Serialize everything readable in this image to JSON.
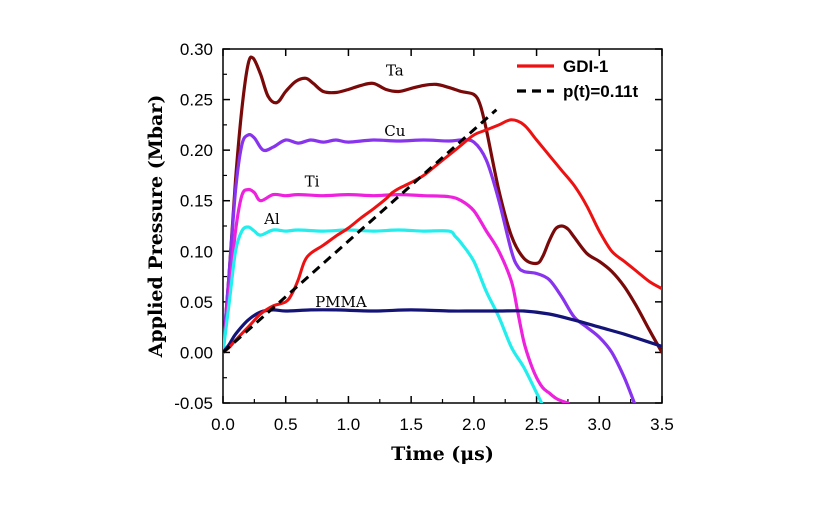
{
  "chart_data": {
    "type": "line",
    "title": "",
    "xlabel": "Time (μs)",
    "ylabel": "Applied Pressure (Mbar)",
    "xlim": [
      0.0,
      3.5
    ],
    "ylim": [
      -0.05,
      0.3
    ],
    "xticks": [
      "0.0",
      "0.5",
      "1.0",
      "1.5",
      "2.0",
      "2.5",
      "3.0",
      "3.5"
    ],
    "yticks": [
      "-0.05",
      "0.00",
      "0.05",
      "0.10",
      "0.15",
      "0.20",
      "0.25",
      "0.30"
    ],
    "xtick_values": [
      0.0,
      0.5,
      1.0,
      1.5,
      2.0,
      2.5,
      3.0,
      3.5
    ],
    "ytick_values": [
      -0.05,
      0.0,
      0.05,
      0.1,
      0.15,
      0.2,
      0.25,
      0.3
    ],
    "grid": false,
    "legend": {
      "placement": "top-right",
      "entries": [
        {
          "label": "GDI-1",
          "series": "GDI-1"
        },
        {
          "label": "p(t)=0.11t",
          "series": "p(t)=0.11t"
        }
      ]
    },
    "series": [
      {
        "name": "Ta",
        "color": "#7a0a0a",
        "dashed": false,
        "label_at": [
          1.37,
          0.274
        ],
        "x": [
          0.0,
          0.05,
          0.1,
          0.15,
          0.2,
          0.24,
          0.3,
          0.36,
          0.43,
          0.5,
          0.58,
          0.66,
          0.72,
          0.8,
          0.9,
          1.0,
          1.1,
          1.2,
          1.3,
          1.4,
          1.5,
          1.6,
          1.7,
          1.8,
          1.9,
          2.0,
          2.05,
          2.1,
          2.2,
          2.3,
          2.4,
          2.5,
          2.55,
          2.6,
          2.65,
          2.7,
          2.75,
          2.8,
          2.9,
          3.0,
          3.1,
          3.2,
          3.3,
          3.4,
          3.5
        ],
        "y": [
          0.0,
          0.08,
          0.17,
          0.24,
          0.285,
          0.291,
          0.275,
          0.253,
          0.247,
          0.258,
          0.268,
          0.271,
          0.266,
          0.258,
          0.257,
          0.26,
          0.264,
          0.266,
          0.26,
          0.258,
          0.261,
          0.264,
          0.265,
          0.262,
          0.258,
          0.255,
          0.245,
          0.22,
          0.16,
          0.115,
          0.093,
          0.088,
          0.095,
          0.11,
          0.122,
          0.125,
          0.122,
          0.114,
          0.098,
          0.09,
          0.08,
          0.065,
          0.045,
          0.022,
          0.0
        ]
      },
      {
        "name": "Cu",
        "color": "#8833ee",
        "dashed": false,
        "label_at": [
          1.37,
          0.214
        ],
        "x": [
          0.0,
          0.05,
          0.1,
          0.15,
          0.2,
          0.25,
          0.32,
          0.4,
          0.5,
          0.6,
          0.7,
          0.8,
          0.9,
          1.0,
          1.2,
          1.4,
          1.6,
          1.8,
          1.9,
          2.0,
          2.1,
          2.2,
          2.3,
          2.35,
          2.4,
          2.5,
          2.6,
          2.7,
          2.8,
          2.9,
          3.0,
          3.1,
          3.2,
          3.28
        ],
        "y": [
          0.0,
          0.08,
          0.16,
          0.205,
          0.215,
          0.212,
          0.2,
          0.203,
          0.21,
          0.207,
          0.21,
          0.208,
          0.21,
          0.208,
          0.21,
          0.209,
          0.21,
          0.209,
          0.21,
          0.208,
          0.19,
          0.15,
          0.1,
          0.085,
          0.08,
          0.078,
          0.072,
          0.055,
          0.035,
          0.025,
          0.015,
          0.0,
          -0.025,
          -0.05
        ]
      },
      {
        "name": "Ti",
        "color": "#ee22dd",
        "dashed": false,
        "label_at": [
          0.71,
          0.164
        ],
        "x": [
          0.0,
          0.05,
          0.1,
          0.15,
          0.2,
          0.25,
          0.3,
          0.4,
          0.5,
          0.6,
          0.8,
          1.0,
          1.2,
          1.4,
          1.6,
          1.8,
          1.9,
          2.0,
          2.1,
          2.2,
          2.3,
          2.35,
          2.4,
          2.45,
          2.5,
          2.55,
          2.6,
          2.65,
          2.7,
          2.75
        ],
        "y": [
          0.0,
          0.06,
          0.12,
          0.155,
          0.161,
          0.158,
          0.15,
          0.156,
          0.155,
          0.156,
          0.155,
          0.156,
          0.155,
          0.156,
          0.155,
          0.154,
          0.15,
          0.14,
          0.12,
          0.1,
          0.07,
          0.04,
          0.01,
          -0.01,
          -0.025,
          -0.035,
          -0.04,
          -0.045,
          -0.048,
          -0.05
        ]
      },
      {
        "name": "Al",
        "color": "#22eeee",
        "dashed": false,
        "label_at": [
          0.39,
          0.127
        ],
        "x": [
          0.0,
          0.05,
          0.1,
          0.15,
          0.2,
          0.25,
          0.3,
          0.4,
          0.5,
          0.6,
          0.8,
          1.0,
          1.2,
          1.4,
          1.6,
          1.8,
          1.85,
          1.9,
          2.0,
          2.1,
          2.2,
          2.3,
          2.4,
          2.5,
          2.54
        ],
        "y": [
          0.0,
          0.05,
          0.1,
          0.12,
          0.124,
          0.12,
          0.116,
          0.121,
          0.12,
          0.121,
          0.12,
          0.121,
          0.12,
          0.121,
          0.12,
          0.12,
          0.115,
          0.108,
          0.09,
          0.06,
          0.035,
          0.005,
          -0.015,
          -0.04,
          -0.05
        ]
      },
      {
        "name": "PMMA",
        "color": "#141478",
        "dashed": false,
        "label_at": [
          0.94,
          0.045
        ],
        "x": [
          0.0,
          0.05,
          0.1,
          0.2,
          0.3,
          0.4,
          0.5,
          0.7,
          0.9,
          1.2,
          1.5,
          1.8,
          2.0,
          2.2,
          2.4,
          2.6,
          2.8,
          3.0,
          3.2,
          3.4,
          3.5
        ],
        "y": [
          0.0,
          0.008,
          0.018,
          0.032,
          0.04,
          0.042,
          0.041,
          0.042,
          0.042,
          0.041,
          0.042,
          0.041,
          0.041,
          0.041,
          0.041,
          0.038,
          0.032,
          0.025,
          0.018,
          0.01,
          0.006
        ]
      },
      {
        "name": "GDI-1",
        "color": "#ee1111",
        "dashed": false,
        "width": 3,
        "label_at": null,
        "x": [
          0.0,
          0.05,
          0.1,
          0.2,
          0.3,
          0.4,
          0.5,
          0.55,
          0.6,
          0.65,
          0.7,
          0.8,
          0.9,
          1.0,
          1.1,
          1.2,
          1.3,
          1.35,
          1.4,
          1.5,
          1.6,
          1.7,
          1.8,
          1.9,
          2.0,
          2.1,
          2.2,
          2.3,
          2.4,
          2.5,
          2.6,
          2.7,
          2.8,
          2.9,
          3.0,
          3.1,
          3.2,
          3.3,
          3.4,
          3.5
        ],
        "y": [
          0.0,
          0.005,
          0.012,
          0.025,
          0.038,
          0.046,
          0.05,
          0.058,
          0.072,
          0.09,
          0.098,
          0.106,
          0.115,
          0.123,
          0.133,
          0.142,
          0.152,
          0.158,
          0.162,
          0.168,
          0.175,
          0.185,
          0.195,
          0.205,
          0.215,
          0.22,
          0.225,
          0.23,
          0.225,
          0.21,
          0.195,
          0.18,
          0.165,
          0.145,
          0.12,
          0.1,
          0.09,
          0.08,
          0.07,
          0.063
        ]
      },
      {
        "name": "p(t)=0.11t",
        "color": "#000000",
        "dashed": true,
        "width": 3,
        "label_at": null,
        "x": [
          0.0,
          2.18
        ],
        "y": [
          0.0,
          0.24
        ]
      }
    ]
  }
}
